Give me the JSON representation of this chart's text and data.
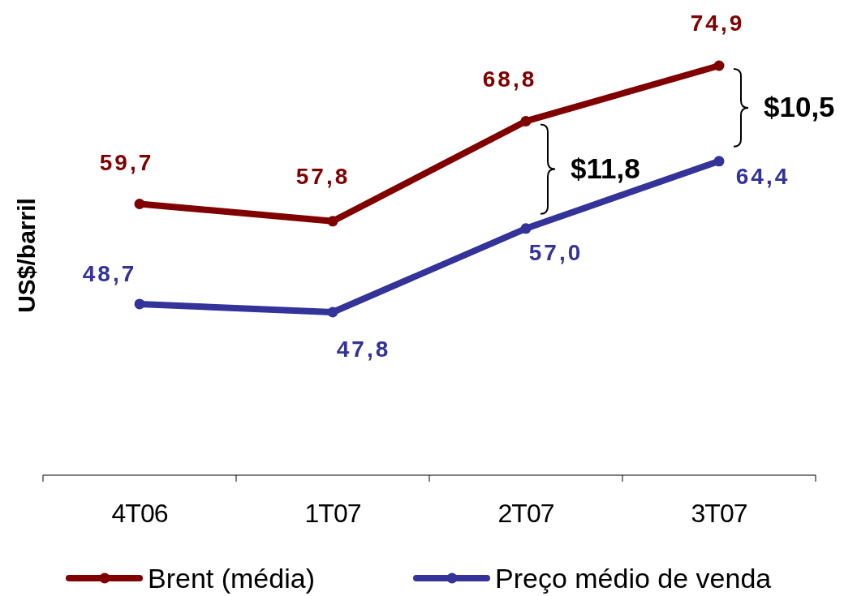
{
  "chart_data": {
    "type": "line",
    "ylabel": "US$/barril",
    "categories": [
      "4T06",
      "1T07",
      "2T07",
      "3T07"
    ],
    "series": [
      {
        "name": "Brent (média)",
        "color": "#800000",
        "values": [
          59.7,
          57.8,
          68.8,
          74.9
        ],
        "value_labels": [
          "59,7",
          "57,8",
          "68,8",
          "74,9"
        ]
      },
      {
        "name": "Preço médio de venda",
        "color": "#333399",
        "values": [
          48.7,
          47.8,
          57.0,
          64.4
        ],
        "value_labels": [
          "48,7",
          "47,8",
          "57,0",
          "64,4"
        ]
      }
    ],
    "tick_labels": "x",
    "legend": "bottom",
    "marker": "circle",
    "line_style": "solid",
    "annotations": [
      "$11,8",
      "$10,5"
    ]
  }
}
